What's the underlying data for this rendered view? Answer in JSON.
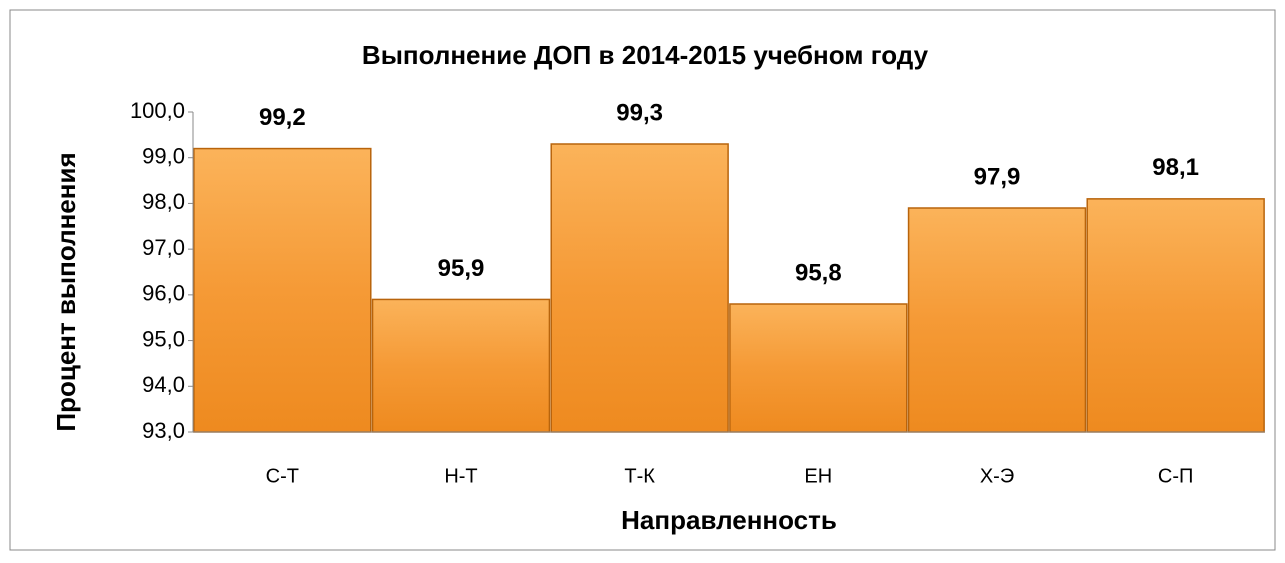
{
  "chart_data": {
    "type": "bar",
    "title": "Выполнение ДОП в 2014-2015 учебном году",
    "x_label": "Направленность",
    "y_label": "Процент выполнения",
    "categories": [
      "С-Т",
      "Н-Т",
      "Т-К",
      "ЕН",
      "Х-Э",
      "С-П"
    ],
    "values": [
      99.2,
      95.9,
      99.3,
      95.8,
      97.9,
      98.1
    ],
    "value_labels": [
      "99,2",
      "95,9",
      "99,3",
      "95,8",
      "97,9",
      "98,1"
    ],
    "color": "#f39a34",
    "ylim": [
      93,
      100
    ],
    "yticks": [
      {
        "value": 93,
        "label": "93,0"
      },
      {
        "value": 94,
        "label": "94,0"
      },
      {
        "value": 95,
        "label": "95,0"
      },
      {
        "value": 96,
        "label": "96,0"
      },
      {
        "value": 97,
        "label": "97,0"
      },
      {
        "value": 98,
        "label": "98,0"
      },
      {
        "value": 99,
        "label": "99,0"
      },
      {
        "value": 100,
        "label": "100,0"
      }
    ],
    "grid": false
  }
}
